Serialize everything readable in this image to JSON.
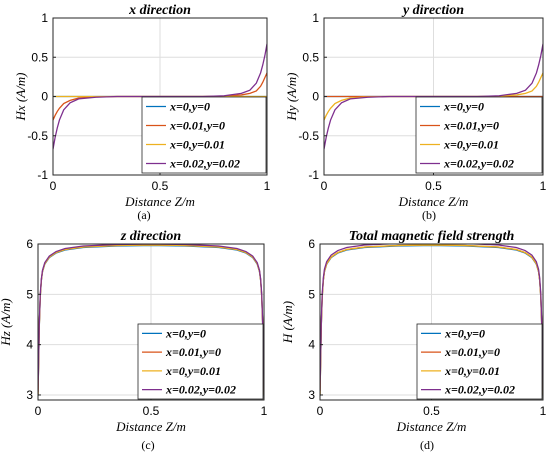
{
  "series_names": [
    "x=0,y=0",
    "x=0.01,y=0",
    "x=0,y=0.01",
    "x=0.02,y=0.02"
  ],
  "series_colors": [
    "#0072bd",
    "#d95319",
    "#edb120",
    "#7e2f8e"
  ],
  "chart_data": [
    {
      "type": "line",
      "title": "x direction",
      "xlabel": "Distance Z/m",
      "ylabel": "Hx (A/m)",
      "caption": "(a)",
      "xlim": [
        0,
        1
      ],
      "ylim": [
        -1,
        1
      ],
      "xticks": [
        0,
        0.5,
        1
      ],
      "xtick_labels": [
        "0",
        "0.5",
        "1"
      ],
      "yticks": [
        -1,
        -0.5,
        0,
        0.5,
        1
      ],
      "ytick_labels": [
        "-1",
        "-0.5",
        "0",
        "0.5",
        "1"
      ],
      "grid": true,
      "legend_position": "bottom-right",
      "x": [
        0,
        0.01,
        0.02,
        0.03,
        0.05,
        0.08,
        0.12,
        0.2,
        0.3,
        0.5,
        0.7,
        0.8,
        0.88,
        0.92,
        0.95,
        0.97,
        0.98,
        0.99,
        1
      ],
      "series": [
        {
          "name": "x=0,y=0",
          "values": [
            0,
            0,
            0,
            0,
            0,
            0,
            0,
            0,
            0,
            0,
            0,
            0,
            0,
            0,
            0,
            0,
            0,
            0,
            0
          ]
        },
        {
          "name": "x=0.01,y=0",
          "values": [
            -0.3,
            -0.24,
            -0.19,
            -0.15,
            -0.09,
            -0.05,
            -0.02,
            -0.005,
            0,
            0,
            0,
            0.005,
            0.02,
            0.04,
            0.07,
            0.13,
            0.18,
            0.24,
            0.3
          ]
        },
        {
          "name": "x=0,y=0.01",
          "values": [
            0,
            0,
            0,
            0,
            0,
            0,
            0,
            0,
            0,
            0,
            0,
            0,
            0,
            0,
            0,
            0,
            0,
            0,
            0
          ]
        },
        {
          "name": "x=0.02,y=0.02",
          "values": [
            -0.67,
            -0.52,
            -0.4,
            -0.3,
            -0.17,
            -0.08,
            -0.03,
            -0.01,
            0,
            0,
            0,
            0.01,
            0.04,
            0.08,
            0.17,
            0.3,
            0.4,
            0.52,
            0.67
          ]
        }
      ]
    },
    {
      "type": "line",
      "title": "y direction",
      "xlabel": "Distance Z/m",
      "ylabel": "Hy (A/m)",
      "caption": "(b)",
      "xlim": [
        0,
        1
      ],
      "ylim": [
        -1,
        1
      ],
      "xticks": [
        0,
        0.5,
        1
      ],
      "xtick_labels": [
        "0",
        "0.5",
        "1"
      ],
      "yticks": [
        -1,
        -0.5,
        0,
        0.5,
        1
      ],
      "ytick_labels": [
        "-1",
        "-0.5",
        "0",
        "0.5",
        "1"
      ],
      "grid": true,
      "legend_position": "bottom-right",
      "x": [
        0,
        0.01,
        0.02,
        0.03,
        0.05,
        0.08,
        0.12,
        0.2,
        0.3,
        0.5,
        0.7,
        0.8,
        0.88,
        0.92,
        0.95,
        0.97,
        0.98,
        0.99,
        1
      ],
      "series": [
        {
          "name": "x=0,y=0",
          "values": [
            0,
            0,
            0,
            0,
            0,
            0,
            0,
            0,
            0,
            0,
            0,
            0,
            0,
            0,
            0,
            0,
            0,
            0,
            0
          ]
        },
        {
          "name": "x=0.01,y=0",
          "values": [
            0,
            0,
            0,
            0,
            0,
            0,
            0,
            0,
            0,
            0,
            0,
            0,
            0,
            0,
            0,
            0,
            0,
            0,
            0
          ]
        },
        {
          "name": "x=0,y=0.01",
          "values": [
            -0.3,
            -0.24,
            -0.19,
            -0.15,
            -0.09,
            -0.05,
            -0.02,
            -0.005,
            0,
            0,
            0,
            0.005,
            0.02,
            0.04,
            0.07,
            0.13,
            0.18,
            0.24,
            0.3
          ]
        },
        {
          "name": "x=0.02,y=0.02",
          "values": [
            -0.67,
            -0.52,
            -0.4,
            -0.3,
            -0.17,
            -0.08,
            -0.03,
            -0.01,
            0,
            0,
            0,
            0.01,
            0.04,
            0.08,
            0.17,
            0.3,
            0.4,
            0.52,
            0.67
          ]
        }
      ]
    },
    {
      "type": "line",
      "title": "z direction",
      "xlabel": "Distance Z/m",
      "ylabel": "Hz (A/m)",
      "caption": "(c)",
      "xlim": [
        0,
        1
      ],
      "ylim": [
        2.9,
        6
      ],
      "xticks": [
        0,
        0.5,
        1
      ],
      "xtick_labels": [
        "0",
        "0.5",
        "1"
      ],
      "yticks": [
        3,
        4,
        5,
        6
      ],
      "ytick_labels": [
        "3",
        "4",
        "5",
        "6"
      ],
      "grid": true,
      "legend_position": "bottom-right",
      "x": [
        0,
        0.003,
        0.006,
        0.01,
        0.015,
        0.02,
        0.03,
        0.05,
        0.08,
        0.12,
        0.2,
        0.35,
        0.5,
        0.65,
        0.8,
        0.88,
        0.92,
        0.95,
        0.97,
        0.98,
        0.985,
        0.99,
        0.994,
        0.997,
        1
      ],
      "series": [
        {
          "name": "x=0,y=0",
          "values": [
            2.98,
            3.7,
            4.4,
            4.95,
            5.28,
            5.45,
            5.6,
            5.73,
            5.82,
            5.88,
            5.93,
            5.96,
            5.97,
            5.96,
            5.93,
            5.88,
            5.82,
            5.73,
            5.6,
            5.45,
            5.28,
            4.95,
            4.4,
            3.7,
            2.98
          ]
        },
        {
          "name": "x=0.01,y=0",
          "values": [
            3.0,
            3.72,
            4.42,
            4.96,
            5.29,
            5.46,
            5.61,
            5.74,
            5.83,
            5.89,
            5.94,
            5.97,
            5.98,
            5.97,
            5.94,
            5.89,
            5.83,
            5.74,
            5.61,
            5.46,
            5.29,
            4.96,
            4.42,
            3.72,
            3.0
          ]
        },
        {
          "name": "x=0,y=0.01",
          "values": [
            3.0,
            3.72,
            4.42,
            4.96,
            5.29,
            5.46,
            5.61,
            5.74,
            5.83,
            5.89,
            5.94,
            5.97,
            5.98,
            5.97,
            5.94,
            5.89,
            5.83,
            5.74,
            5.61,
            5.46,
            5.29,
            4.96,
            4.42,
            3.72,
            3.0
          ]
        },
        {
          "name": "x=0.02,y=0.02",
          "values": [
            3.06,
            3.78,
            4.47,
            5.0,
            5.31,
            5.48,
            5.63,
            5.76,
            5.85,
            5.91,
            5.96,
            5.99,
            6.0,
            5.99,
            5.96,
            5.91,
            5.85,
            5.76,
            5.63,
            5.48,
            5.31,
            5.0,
            4.47,
            3.78,
            3.06
          ]
        }
      ]
    },
    {
      "type": "line",
      "title": "Total magnetic field strength",
      "xlabel": "Distance Z/m",
      "ylabel": "H (A/m)",
      "caption": "(d)",
      "xlim": [
        0,
        1
      ],
      "ylim": [
        2.9,
        6
      ],
      "xticks": [
        0,
        0.5,
        1
      ],
      "xtick_labels": [
        "0",
        "0.5",
        "1"
      ],
      "yticks": [
        3,
        4,
        5,
        6
      ],
      "ytick_labels": [
        "3",
        "4",
        "5",
        "6"
      ],
      "grid": true,
      "legend_position": "bottom-right",
      "x": [
        0,
        0.003,
        0.006,
        0.01,
        0.015,
        0.02,
        0.03,
        0.05,
        0.08,
        0.12,
        0.2,
        0.35,
        0.5,
        0.65,
        0.8,
        0.88,
        0.92,
        0.95,
        0.97,
        0.98,
        0.985,
        0.99,
        0.994,
        0.997,
        1
      ],
      "series": [
        {
          "name": "x=0,y=0",
          "values": [
            2.98,
            3.7,
            4.4,
            4.95,
            5.28,
            5.45,
            5.6,
            5.73,
            5.82,
            5.88,
            5.93,
            5.96,
            5.97,
            5.96,
            5.93,
            5.88,
            5.82,
            5.73,
            5.6,
            5.45,
            5.28,
            4.95,
            4.4,
            3.7,
            2.98
          ]
        },
        {
          "name": "x=0.01,y=0",
          "values": [
            3.0,
            3.72,
            4.42,
            4.96,
            5.29,
            5.46,
            5.61,
            5.74,
            5.83,
            5.89,
            5.94,
            5.97,
            5.98,
            5.97,
            5.94,
            5.89,
            5.83,
            5.74,
            5.61,
            5.46,
            5.29,
            4.96,
            4.42,
            3.72,
            3.0
          ]
        },
        {
          "name": "x=0,y=0.01",
          "values": [
            3.0,
            3.72,
            4.42,
            4.96,
            5.29,
            5.46,
            5.61,
            5.74,
            5.83,
            5.89,
            5.94,
            5.97,
            5.98,
            5.97,
            5.94,
            5.89,
            5.83,
            5.74,
            5.61,
            5.46,
            5.29,
            4.96,
            4.42,
            3.72,
            3.0
          ]
        },
        {
          "name": "x=0.02,y=0.02",
          "values": [
            3.08,
            3.8,
            4.5,
            5.02,
            5.33,
            5.5,
            5.65,
            5.78,
            5.87,
            5.93,
            5.98,
            6.01,
            6.02,
            6.01,
            5.98,
            5.93,
            5.87,
            5.78,
            5.65,
            5.5,
            5.33,
            5.02,
            4.5,
            3.8,
            3.08
          ]
        }
      ]
    }
  ]
}
